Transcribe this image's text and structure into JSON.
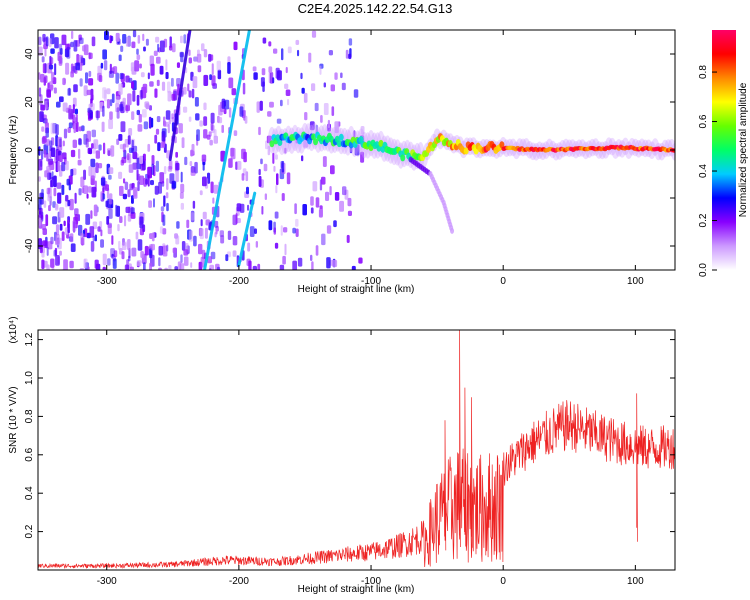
{
  "title": "C2E4.2025.142.22.54.G13",
  "chart_data": [
    {
      "type": "heatmap",
      "xlabel": "Height of straight line (km)",
      "ylabel": "Frequency (Hz)",
      "xlim": [
        -352,
        130
      ],
      "ylim": [
        -50,
        50
      ],
      "x_ticks": [
        -300,
        -200,
        -100,
        0,
        100
      ],
      "y_ticks": [
        -40,
        -20,
        0,
        20,
        40
      ],
      "colorbar": {
        "label": "Normalized spectral amplitude",
        "range": [
          0.0,
          0.97
        ],
        "ticks": [
          0.0,
          0.2,
          0.4,
          0.6,
          0.8
        ],
        "colors": [
          "#ffffff",
          "#cc99ff",
          "#8800ff",
          "#0000ff",
          "#00ccff",
          "#00ff66",
          "#66ff00",
          "#ffff00",
          "#ff8800",
          "#ff0000",
          "#ff0066"
        ]
      },
      "central_ridge": [
        {
          "x": -175,
          "y": 4,
          "v": 0.45
        },
        {
          "x": -150,
          "y": 5,
          "v": 0.4
        },
        {
          "x": -120,
          "y": 4,
          "v": 0.45
        },
        {
          "x": -95,
          "y": 2,
          "v": 0.55
        },
        {
          "x": -75,
          "y": -2,
          "v": 0.5
        },
        {
          "x": -60,
          "y": -3,
          "v": 0.6
        },
        {
          "x": -50,
          "y": 5,
          "v": 0.7
        },
        {
          "x": -30,
          "y": 1,
          "v": 0.75
        },
        {
          "x": -10,
          "y": 1,
          "v": 0.85
        },
        {
          "x": 30,
          "y": 0,
          "v": 0.9
        },
        {
          "x": 90,
          "y": 1,
          "v": 0.9
        },
        {
          "x": 130,
          "y": 0,
          "v": 0.85
        }
      ],
      "branch": [
        {
          "x": -70,
          "y": -4
        },
        {
          "x": -55,
          "y": -10
        },
        {
          "x": -45,
          "y": -22
        },
        {
          "x": -38,
          "y": -35
        }
      ],
      "streaks": [
        {
          "x1": -237,
          "y1": 50,
          "x2": -252,
          "y2": -4
        },
        {
          "x1": -192,
          "y1": 50,
          "x2": -226,
          "y2": -50
        },
        {
          "x1": -188,
          "y1": -18,
          "x2": -200,
          "y2": -48
        }
      ]
    },
    {
      "type": "line",
      "xlabel": "Height of straight line (km)",
      "ylabel": "SNR (10 * V/V)",
      "scale_note": "(x10⁴)",
      "xlim": [
        -352,
        130
      ],
      "ylim": [
        0,
        1.25
      ],
      "x_ticks": [
        -300,
        -200,
        -100,
        0,
        100
      ],
      "y_ticks": [
        0.2,
        0.4,
        0.6,
        0.8,
        1.0,
        1.2
      ],
      "color": "#ee2222",
      "envelope": [
        {
          "x": -352,
          "y": 0.03
        },
        {
          "x": -300,
          "y": 0.03
        },
        {
          "x": -250,
          "y": 0.04
        },
        {
          "x": -210,
          "y": 0.07
        },
        {
          "x": -170,
          "y": 0.06
        },
        {
          "x": -130,
          "y": 0.1
        },
        {
          "x": -100,
          "y": 0.13
        },
        {
          "x": -80,
          "y": 0.17
        },
        {
          "x": -60,
          "y": 0.24
        },
        {
          "x": -50,
          "y": 0.45
        },
        {
          "x": -40,
          "y": 0.55
        },
        {
          "x": -30,
          "y": 0.62
        },
        {
          "x": -20,
          "y": 0.55
        },
        {
          "x": 0,
          "y": 0.6
        },
        {
          "x": 20,
          "y": 0.74
        },
        {
          "x": 40,
          "y": 0.83
        },
        {
          "x": 50,
          "y": 0.86
        },
        {
          "x": 70,
          "y": 0.8
        },
        {
          "x": 90,
          "y": 0.75
        },
        {
          "x": 110,
          "y": 0.72
        },
        {
          "x": 130,
          "y": 0.73
        }
      ],
      "peaks": [
        {
          "x": -33,
          "y": 1.25
        },
        {
          "x": -29,
          "y": 0.95
        },
        {
          "x": -24,
          "y": 0.9
        },
        {
          "x": -44,
          "y": 0.78
        },
        {
          "x": 101,
          "y": 0.92
        }
      ]
    }
  ]
}
